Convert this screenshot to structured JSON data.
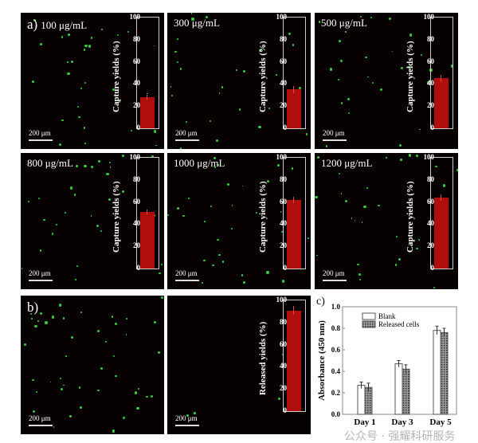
{
  "panels_a": [
    {
      "label": "100 μg/mL",
      "prefix": "a)",
      "scale": "200 μm",
      "value": 28,
      "err": 2
    },
    {
      "label": "300 μg/mL",
      "prefix": "",
      "scale": "200 μm",
      "value": 35,
      "err": 3
    },
    {
      "label": "500 μg/mL",
      "prefix": "",
      "scale": "200 μm",
      "value": 45,
      "err": 3
    },
    {
      "label": "800 μg/mL",
      "prefix": "",
      "scale": "200 μm",
      "value": 51,
      "err": 2
    },
    {
      "label": "1000 μg/mL",
      "prefix": "",
      "scale": "200 μm",
      "value": 62,
      "err": 3
    },
    {
      "label": "1200 μg/mL",
      "prefix": "",
      "scale": "200 μm",
      "value": 64,
      "err": 3
    }
  ],
  "panels_b": [
    {
      "prefix": "b)",
      "scale": "200 μm"
    },
    {
      "scale": "200 μm",
      "value": 91,
      "err": 4
    }
  ],
  "inset_ylabel_a": "Capture yields (%)",
  "inset_ylabel_b": "Released yields (%)",
  "inset_ticks": [
    "0",
    "20",
    "40",
    "60",
    "80",
    "100"
  ],
  "colors": {
    "bar": "#b00d0d",
    "cells": "#33cc33",
    "background": "#060000"
  },
  "chart_data": [
    {
      "type": "bar",
      "title": "",
      "ylabel": "Capture yields (%)",
      "categories": [
        "100 μg/mL",
        "300 μg/mL",
        "500 μg/mL",
        "800 μg/mL",
        "1000 μg/mL",
        "1200 μg/mL"
      ],
      "values": [
        28,
        35,
        45,
        51,
        62,
        64
      ],
      "ylim": [
        0,
        100
      ]
    },
    {
      "type": "bar",
      "ylabel": "Released yields (%)",
      "values": [
        91
      ],
      "ylim": [
        0,
        100
      ]
    },
    {
      "type": "bar",
      "panel_label": "c)",
      "xlabel": "",
      "ylabel": "Absorbance (450 nm)",
      "categories": [
        "Day 1",
        "Day 3",
        "Day 5"
      ],
      "ylim": [
        0,
        1.0
      ],
      "yticks": [
        "0.0",
        "0.2",
        "0.4",
        "0.6",
        "0.8",
        "1.0"
      ],
      "legend": "top-left",
      "series": [
        {
          "name": "Blank",
          "values": [
            0.27,
            0.47,
            0.78
          ],
          "errors": [
            0.03,
            0.03,
            0.04
          ]
        },
        {
          "name": "Released cells",
          "values": [
            0.25,
            0.42,
            0.76
          ],
          "errors": [
            0.04,
            0.04,
            0.04
          ]
        }
      ]
    }
  ],
  "watermark": "公众号 · 强耀科研服务"
}
